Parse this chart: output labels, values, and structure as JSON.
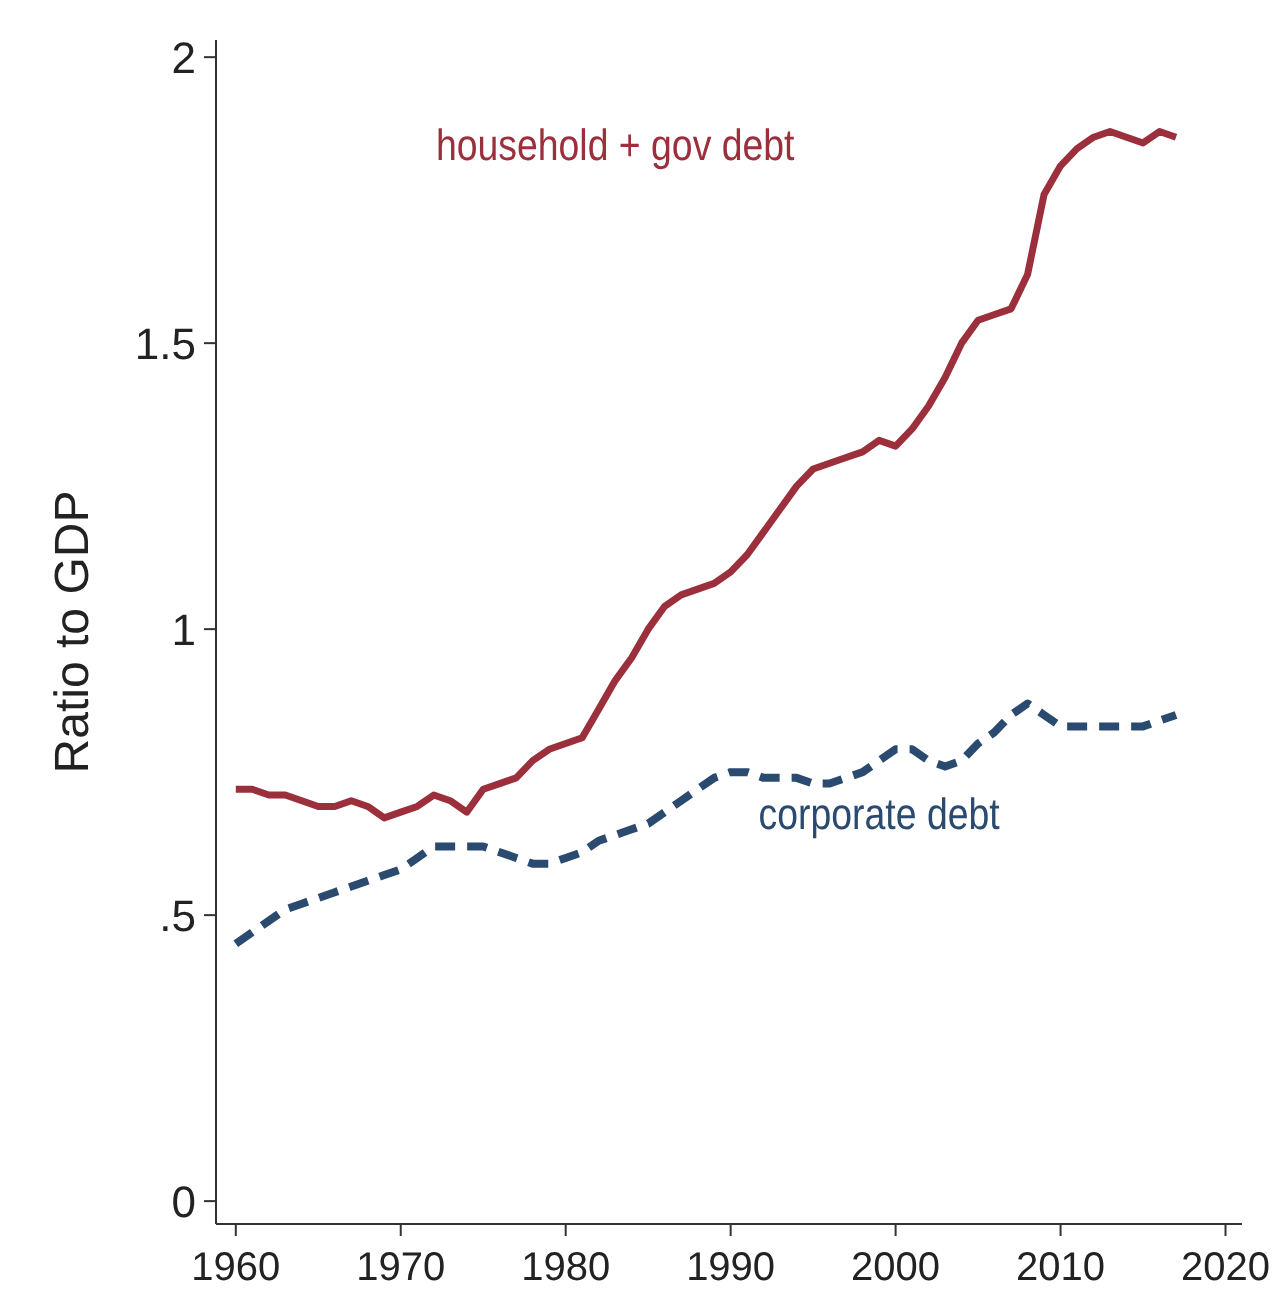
{
  "chart_data": {
    "type": "line",
    "ylabel": "Ratio to GDP",
    "x": [
      1960,
      1961,
      1962,
      1963,
      1964,
      1965,
      1966,
      1967,
      1968,
      1969,
      1970,
      1971,
      1972,
      1973,
      1974,
      1975,
      1976,
      1977,
      1978,
      1979,
      1980,
      1981,
      1982,
      1983,
      1984,
      1985,
      1986,
      1987,
      1988,
      1989,
      1990,
      1991,
      1992,
      1993,
      1994,
      1995,
      1996,
      1997,
      1998,
      1999,
      2000,
      2001,
      2002,
      2003,
      2004,
      2005,
      2006,
      2007,
      2008,
      2009,
      2010,
      2011,
      2012,
      2013,
      2014,
      2015,
      2016,
      2017
    ],
    "series": [
      {
        "name": "household + gov debt",
        "color": "#9b2f3c",
        "line_style": "solid",
        "values": [
          0.72,
          0.72,
          0.71,
          0.71,
          0.7,
          0.69,
          0.69,
          0.7,
          0.69,
          0.67,
          0.68,
          0.69,
          0.71,
          0.7,
          0.68,
          0.72,
          0.73,
          0.74,
          0.77,
          0.79,
          0.8,
          0.81,
          0.86,
          0.91,
          0.95,
          1.0,
          1.04,
          1.06,
          1.07,
          1.08,
          1.1,
          1.13,
          1.17,
          1.21,
          1.25,
          1.28,
          1.29,
          1.3,
          1.31,
          1.33,
          1.32,
          1.35,
          1.39,
          1.44,
          1.5,
          1.54,
          1.55,
          1.56,
          1.62,
          1.76,
          1.81,
          1.84,
          1.86,
          1.87,
          1.86,
          1.85,
          1.87,
          1.86
        ]
      },
      {
        "name": "corporate debt",
        "color": "#2b4a6f",
        "line_style": "dashed",
        "values": [
          0.45,
          0.47,
          0.49,
          0.51,
          0.52,
          0.53,
          0.54,
          0.55,
          0.56,
          0.57,
          0.58,
          0.6,
          0.62,
          0.62,
          0.62,
          0.62,
          0.61,
          0.6,
          0.59,
          0.59,
          0.6,
          0.61,
          0.63,
          0.64,
          0.65,
          0.66,
          0.68,
          0.7,
          0.72,
          0.74,
          0.75,
          0.75,
          0.74,
          0.74,
          0.74,
          0.73,
          0.73,
          0.74,
          0.75,
          0.77,
          0.79,
          0.79,
          0.77,
          0.76,
          0.77,
          0.8,
          0.82,
          0.85,
          0.87,
          0.85,
          0.83,
          0.83,
          0.83,
          0.83,
          0.83,
          0.83,
          0.84,
          0.85
        ]
      }
    ],
    "xlim": [
      1958.8,
      2021
    ],
    "xticks": [
      1960,
      1970,
      1980,
      1990,
      2000,
      2010,
      2020
    ],
    "ylim": [
      -0.04,
      2.03
    ],
    "yticks": [
      0,
      {
        "value": 0.5,
        "label": ".5"
      },
      1,
      1.5,
      2
    ],
    "grid": false,
    "legend": false,
    "marker": "none"
  }
}
